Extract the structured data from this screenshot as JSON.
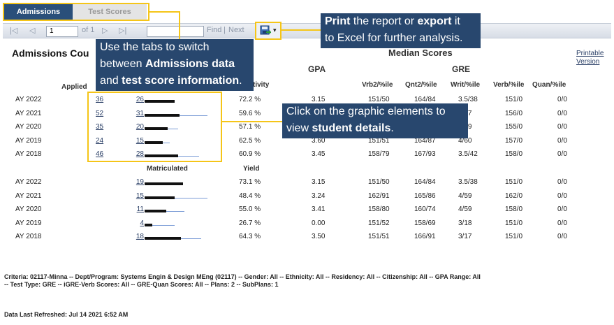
{
  "tabs": {
    "admissions": "Admissions",
    "test_scores": "Test Scores"
  },
  "toolbar": {
    "first": "|◁",
    "prev": "◁",
    "page_value": "1",
    "of_pages": "of 1",
    "next": "▷",
    "last": "▷|",
    "find": "Find",
    "sep": "|",
    "next_find": "Next",
    "export_caret": "▾"
  },
  "callouts": {
    "print_export": {
      "w1": "Print",
      "w2": " the report or ",
      "w3": "export",
      "w4": " it",
      "line2": "to Excel for further analysis."
    },
    "tabs": {
      "line1": "Use the tabs to switch",
      "l2a": "between ",
      "l2b": "Admissions data",
      "l3a": "and ",
      "l3b": "test score information",
      "l3c": "."
    },
    "graphic": {
      "line1": "Click on the graphic elements to",
      "l2a": "view ",
      "l2b": "student details",
      "l2c": "."
    }
  },
  "report": {
    "admissions_title": "Admissions Cou",
    "median_title": "Median Scores",
    "printable": "Printable",
    "version": "Version",
    "applied": "Applied",
    "activity_partial": "tivity",
    "matriculated": "Matriculated",
    "yield": "Yield",
    "gpa": "GPA",
    "gre": "GRE",
    "col_vrb": "Vrb2/%ile",
    "col_qnt": "Qnt2/%ile",
    "col_writ": "Writ/%ile",
    "col_verb": "Verb/%ile",
    "col_quan": "Quan/%ile"
  },
  "rows_top": [
    {
      "year": "AY 2022",
      "a": "36",
      "b": "26",
      "pct": "72.2 %",
      "gpa": "3.15",
      "vrb": "151/50",
      "qnt": "164/84",
      "writ": "3.5/38",
      "verb": "151/0",
      "quan": "0/0",
      "bar": 0.45,
      "thin": 0.45
    },
    {
      "year": "AY 2021",
      "a": "52",
      "b": "31",
      "pct": "59.6 %",
      "gpa": "",
      "vrb": "",
      "qnt": "",
      "writ": "4/57",
      "verb": "156/0",
      "quan": "0/0",
      "bar": 0.53,
      "thin": 0.95
    },
    {
      "year": "AY 2020",
      "a": "35",
      "b": "20",
      "pct": "57.1 %",
      "gpa": "",
      "vrb": "",
      "qnt": "",
      "writ": "4/59",
      "verb": "155/0",
      "quan": "0/0",
      "bar": 0.35,
      "thin": 0.5
    },
    {
      "year": "AY 2019",
      "a": "24",
      "b": "15",
      "pct": "62.5 %",
      "gpa": "3.60",
      "vrb": "151/51",
      "qnt": "164/87",
      "writ": "4/60",
      "verb": "157/0",
      "quan": "0/0",
      "bar": 0.27,
      "thin": 0.38
    },
    {
      "year": "AY 2018",
      "a": "46",
      "b": "28",
      "pct": "60.9 %",
      "gpa": "3.45",
      "vrb": "158/79",
      "qnt": "167/93",
      "writ": "3.5/42",
      "verb": "158/0",
      "quan": "0/0",
      "bar": 0.5,
      "thin": 0.82
    }
  ],
  "rows_bottom": [
    {
      "year": "AY 2022",
      "b": "19",
      "pct": "73.1 %",
      "gpa": "3.15",
      "vrb": "151/50",
      "qnt": "164/84",
      "writ": "3.5/38",
      "verb": "151/0",
      "quan": "0/0",
      "bar": 0.58,
      "thin": 0.58
    },
    {
      "year": "AY 2021",
      "b": "15",
      "pct": "48.4 %",
      "gpa": "3.24",
      "vrb": "162/91",
      "qnt": "165/86",
      "writ": "4/59",
      "verb": "162/0",
      "quan": "0/0",
      "bar": 0.45,
      "thin": 0.95
    },
    {
      "year": "AY 2020",
      "b": "11",
      "pct": "55.0 %",
      "gpa": "3.41",
      "vrb": "158/80",
      "qnt": "160/74",
      "writ": "4/59",
      "verb": "158/0",
      "quan": "0/0",
      "bar": 0.33,
      "thin": 0.6
    },
    {
      "year": "AY 2019",
      "b": "4",
      "pct": "26.7 %",
      "gpa": "0.00",
      "vrb": "151/52",
      "qnt": "158/69",
      "writ": "3/18",
      "verb": "151/0",
      "quan": "0/0",
      "bar": 0.12,
      "thin": 0.45
    },
    {
      "year": "AY 2018",
      "b": "18",
      "pct": "64.3 %",
      "gpa": "3.50",
      "vrb": "151/51",
      "qnt": "166/91",
      "writ": "3/17",
      "verb": "151/0",
      "quan": "0/0",
      "bar": 0.55,
      "thin": 0.85
    }
  ],
  "footer": {
    "criteria1": "Criteria: 02117-Minna -- Dept/Program: Systems Engin & Design MEng (02117) -- Gender: All -- Ethnicity: All -- Residency: All -- Citizenship: All -- GPA Range: All",
    "criteria2": "-- Test Type: GRE -- iGRE-Verb Scores: All -- GRE-Quan Scores: All -- Plans: 2 -- SubPlans: 1",
    "refreshed": "Data Last Refreshed: Jul 14 2021 6:52 AM"
  },
  "colors": {
    "callout_bg": "#28476e",
    "highlight": "#f5c518",
    "bar": "#111111",
    "thin_bar": "#7a9bd6"
  }
}
